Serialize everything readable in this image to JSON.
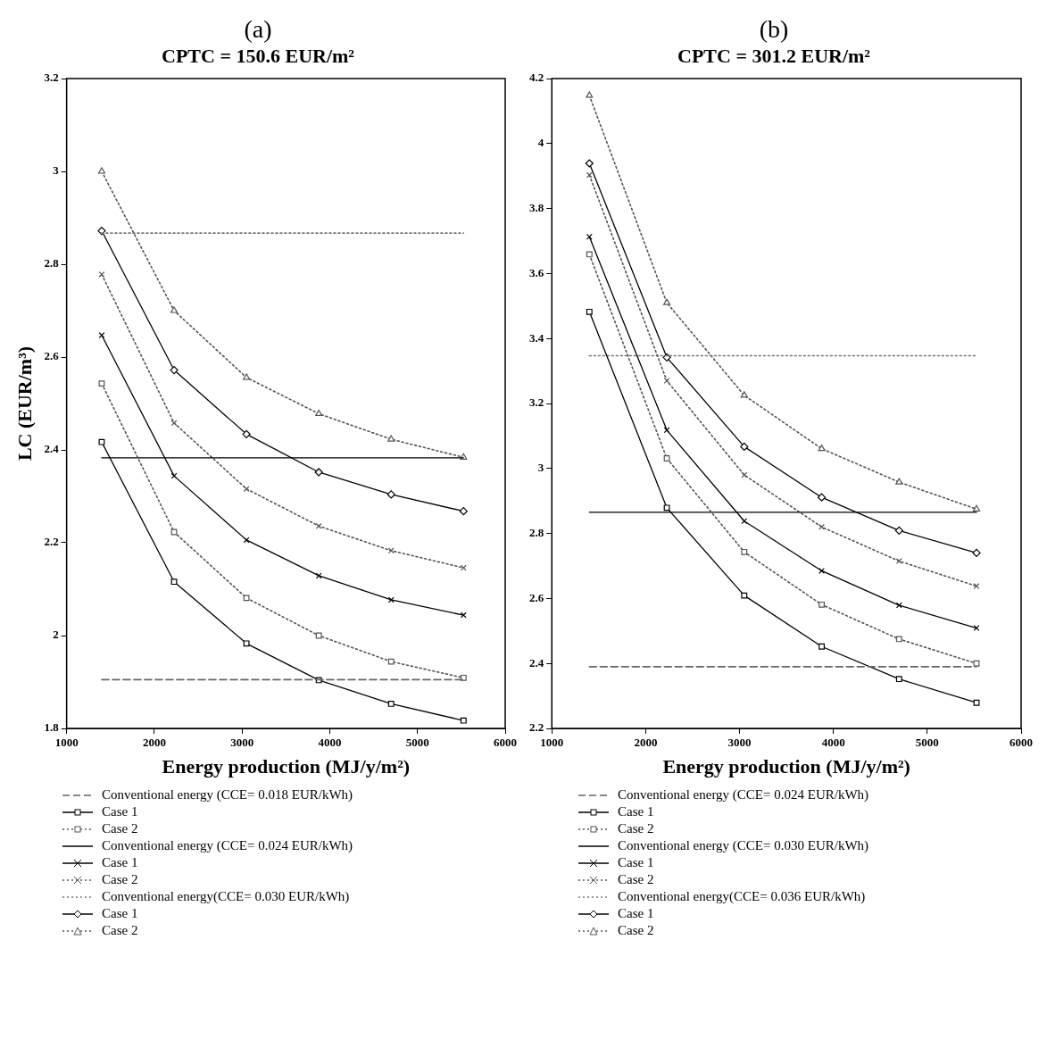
{
  "chart_data": [
    {
      "type": "line",
      "title": "(a)",
      "subtitle": "CPTC = 150.6 EUR/m²",
      "xlabel": "Energy production (MJ/y/m²)",
      "ylabel": "LC (EUR/m³)",
      "x": [
        1400,
        2225,
        3050,
        3875,
        4700,
        5525
      ],
      "xlim": [
        1000,
        6000
      ],
      "xticks": [
        1000,
        2000,
        3000,
        4000,
        5000,
        6000
      ],
      "ylim": [
        1.8,
        3.2
      ],
      "yticks": [
        1.8,
        2,
        2.2,
        2.4,
        2.6,
        2.8,
        3,
        3.2
      ],
      "grid": false,
      "legend": "bottom",
      "series": [
        {
          "name": "Conventional energy (CCE= 0.018 EUR/kWh)",
          "color": "#666666",
          "values": [
            1.905,
            1.905,
            1.905,
            1.905,
            1.905,
            1.905
          ],
          "marker": "none",
          "line_style": "dashed"
        },
        {
          "name": "Case 1",
          "color": "#000000",
          "values": [
            2.417,
            2.116,
            1.983,
            1.904,
            1.853,
            1.817
          ],
          "marker": "square",
          "line_style": "solid"
        },
        {
          "name": "Case 2",
          "color": "#555555",
          "values": [
            2.543,
            2.223,
            2.081,
            2.0,
            1.944,
            1.909
          ],
          "marker": "square",
          "line_style": "dotted"
        },
        {
          "name": "Conventional energy (CCE= 0.024 EUR/kWh)",
          "color": "#000000",
          "values": [
            2.383,
            2.383,
            2.383,
            2.383,
            2.383,
            2.383
          ],
          "marker": "none",
          "line_style": "solid"
        },
        {
          "name": "Case 1",
          "color": "#000000",
          "values": [
            2.647,
            2.344,
            2.206,
            2.129,
            2.077,
            2.044
          ],
          "marker": "cross",
          "line_style": "solid"
        },
        {
          "name": "Case 2",
          "color": "#555555",
          "values": [
            2.778,
            2.458,
            2.316,
            2.236,
            2.183,
            2.146
          ],
          "marker": "cross",
          "line_style": "dotted"
        },
        {
          "name": "Conventional energy(CCE= 0.030 EUR/kWh)",
          "color": "#777777",
          "values": [
            2.867,
            2.867,
            2.867,
            2.867,
            2.867,
            2.867
          ],
          "marker": "none",
          "line_style": "dotted"
        },
        {
          "name": "Case 1",
          "color": "#000000",
          "values": [
            2.872,
            2.572,
            2.434,
            2.352,
            2.304,
            2.268
          ],
          "marker": "diamond",
          "line_style": "solid"
        },
        {
          "name": "Case 2",
          "color": "#555555",
          "values": [
            3.0,
            2.7,
            2.556,
            2.478,
            2.423,
            2.384
          ],
          "marker": "triangle",
          "line_style": "dotted"
        }
      ]
    },
    {
      "type": "line",
      "title": "(b)",
      "subtitle": "CPTC = 301.2 EUR/m²",
      "xlabel": "Energy production (MJ/y/m²)",
      "x": [
        1400,
        2225,
        3050,
        3875,
        4700,
        5525
      ],
      "xlim": [
        1000,
        6000
      ],
      "xticks": [
        1000,
        2000,
        3000,
        4000,
        5000,
        6000
      ],
      "ylim": [
        2.2,
        4.2
      ],
      "yticks": [
        2.2,
        2.4,
        2.6,
        2.8,
        3,
        3.2,
        3.4,
        3.6,
        3.8,
        4,
        4.2
      ],
      "grid": false,
      "legend": "bottom",
      "series": [
        {
          "name": "Conventional energy (CCE= 0.024 EUR/kWh)",
          "color": "#666666",
          "values": [
            2.39,
            2.39,
            2.39,
            2.39,
            2.39,
            2.39
          ],
          "marker": "none",
          "line_style": "dashed"
        },
        {
          "name": "Case 1",
          "color": "#000000",
          "values": [
            3.482,
            2.879,
            2.609,
            2.452,
            2.352,
            2.279
          ],
          "marker": "square",
          "line_style": "solid"
        },
        {
          "name": "Case 2",
          "color": "#555555",
          "values": [
            3.659,
            3.031,
            2.743,
            2.581,
            2.475,
            2.4
          ],
          "marker": "square",
          "line_style": "dotted"
        },
        {
          "name": "Conventional energy (CCE= 0.030 EUR/kWh)",
          "color": "#000000",
          "values": [
            2.865,
            2.865,
            2.865,
            2.865,
            2.865,
            2.865
          ],
          "marker": "none",
          "line_style": "solid"
        },
        {
          "name": "Case 1",
          "color": "#000000",
          "values": [
            3.713,
            3.118,
            2.838,
            2.685,
            2.579,
            2.509
          ],
          "marker": "cross",
          "line_style": "solid"
        },
        {
          "name": "Case 2",
          "color": "#555555",
          "values": [
            3.903,
            3.27,
            2.98,
            2.82,
            2.715,
            2.638
          ],
          "marker": "cross",
          "line_style": "dotted"
        },
        {
          "name": "Conventional energy(CCE= 0.036 EUR/kWh)",
          "color": "#777777",
          "values": [
            3.347,
            3.347,
            3.347,
            3.347,
            3.347,
            3.347
          ],
          "marker": "none",
          "line_style": "dotted"
        },
        {
          "name": "Case 1",
          "color": "#000000",
          "values": [
            3.939,
            3.342,
            3.067,
            2.911,
            2.809,
            2.74
          ],
          "marker": "diamond",
          "line_style": "solid"
        },
        {
          "name": "Case 2",
          "color": "#555555",
          "values": [
            4.148,
            3.51,
            3.225,
            3.061,
            2.958,
            2.875
          ],
          "marker": "triangle",
          "line_style": "dotted"
        }
      ]
    }
  ]
}
